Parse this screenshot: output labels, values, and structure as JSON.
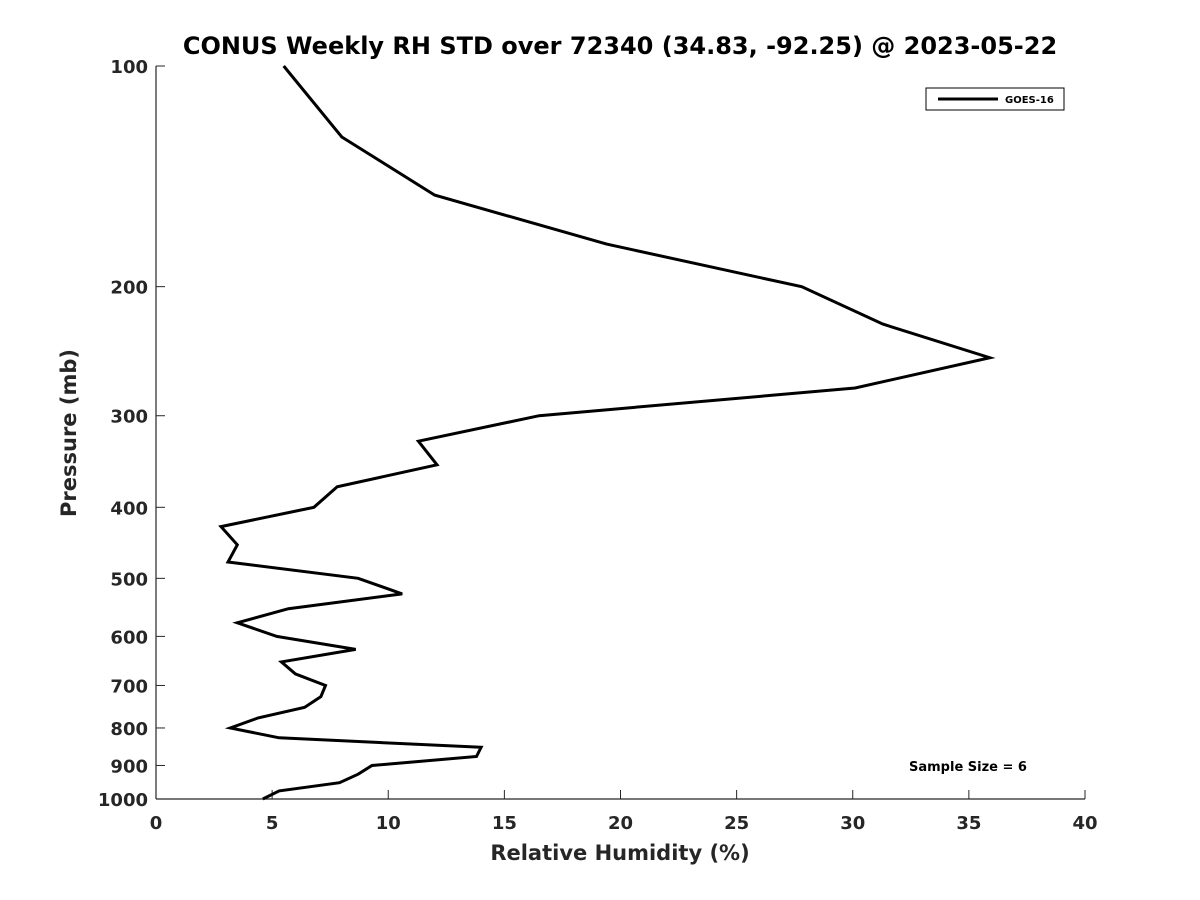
{
  "chart_data": {
    "type": "line",
    "title": "CONUS Weekly RH STD over 72340 (34.83, -92.25) @ 2023-05-22",
    "xlabel": "Relative Humidity (%)",
    "ylabel": "Pressure (mb)",
    "xlim": [
      0,
      40
    ],
    "ylim": [
      100,
      1000
    ],
    "y_scale": "log",
    "y_reversed": true,
    "xticks": [
      0,
      5,
      10,
      15,
      20,
      25,
      30,
      35,
      40
    ],
    "xtick_labels": [
      "0",
      "5",
      "10",
      "15",
      "20",
      "25",
      "30",
      "35",
      "40"
    ],
    "yticks": [
      100,
      200,
      300,
      400,
      500,
      600,
      700,
      800,
      900,
      1000
    ],
    "ytick_labels": [
      "100",
      "200",
      "300",
      "400",
      "500",
      "600",
      "700",
      "800",
      "900",
      "1000"
    ],
    "grid": false,
    "legend_position": "top-right",
    "series": [
      {
        "name": "GOES-16",
        "color": "#000000",
        "points": [
          {
            "x": 5.5,
            "p": 100
          },
          {
            "x": 8.0,
            "p": 125
          },
          {
            "x": 12.0,
            "p": 150
          },
          {
            "x": 19.4,
            "p": 175
          },
          {
            "x": 27.8,
            "p": 200
          },
          {
            "x": 31.3,
            "p": 225
          },
          {
            "x": 35.9,
            "p": 250
          },
          {
            "x": 30.1,
            "p": 275
          },
          {
            "x": 16.5,
            "p": 300
          },
          {
            "x": 11.3,
            "p": 325
          },
          {
            "x": 12.1,
            "p": 350
          },
          {
            "x": 7.8,
            "p": 375
          },
          {
            "x": 6.8,
            "p": 400
          },
          {
            "x": 2.8,
            "p": 425
          },
          {
            "x": 3.5,
            "p": 450
          },
          {
            "x": 3.1,
            "p": 475
          },
          {
            "x": 8.7,
            "p": 500
          },
          {
            "x": 10.6,
            "p": 525
          },
          {
            "x": 5.7,
            "p": 550
          },
          {
            "x": 3.5,
            "p": 575
          },
          {
            "x": 5.2,
            "p": 600
          },
          {
            "x": 8.6,
            "p": 625
          },
          {
            "x": 5.4,
            "p": 650
          },
          {
            "x": 6.0,
            "p": 675
          },
          {
            "x": 7.3,
            "p": 700
          },
          {
            "x": 7.1,
            "p": 725
          },
          {
            "x": 6.4,
            "p": 750
          },
          {
            "x": 4.4,
            "p": 775
          },
          {
            "x": 3.2,
            "p": 800
          },
          {
            "x": 5.3,
            "p": 825
          },
          {
            "x": 14.0,
            "p": 850
          },
          {
            "x": 13.8,
            "p": 875
          },
          {
            "x": 9.3,
            "p": 900
          },
          {
            "x": 8.7,
            "p": 925
          },
          {
            "x": 7.9,
            "p": 950
          },
          {
            "x": 5.3,
            "p": 975
          },
          {
            "x": 4.6,
            "p": 1000
          }
        ]
      }
    ],
    "annotations": [
      {
        "text": "Sample Size = 6",
        "position": "bottom-right"
      }
    ]
  }
}
